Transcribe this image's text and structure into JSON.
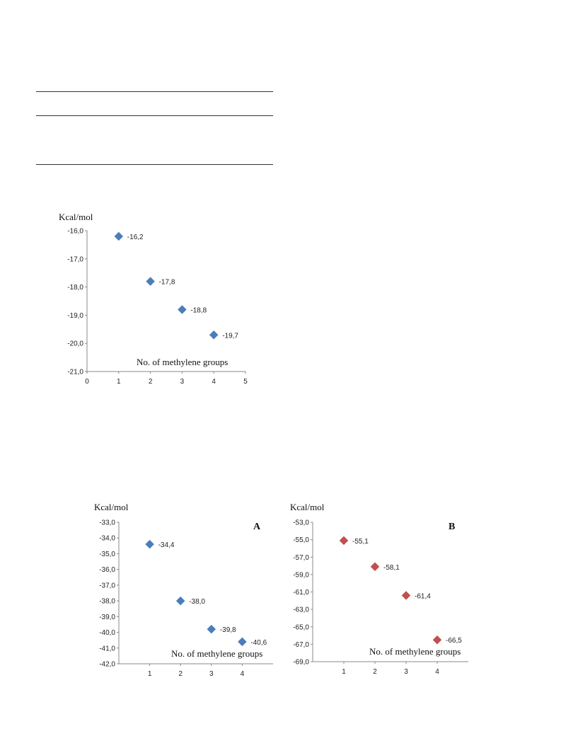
{
  "table_rules": [
    {},
    {},
    {}
  ],
  "chart_data": [
    {
      "id": "chart1",
      "type": "scatter",
      "unit_label": "Kcal/mol",
      "xlabel": "No. of methylene  groups",
      "panel": "",
      "x": [
        1,
        2,
        3,
        4
      ],
      "y": [
        -16.2,
        -17.8,
        -18.8,
        -19.7
      ],
      "data_labels": [
        "-16,2",
        "-17,8",
        "-18,8",
        "-19,7"
      ],
      "xlim": [
        0,
        5
      ],
      "ylim": [
        -21,
        -16
      ],
      "xticks": [
        "0",
        "1",
        "2",
        "3",
        "4",
        "5"
      ],
      "yticks": [
        "-16,0",
        "-17,0",
        "-18,0",
        "-19,0",
        "-20,0",
        "-21,0"
      ],
      "marker_color": "#4a7ebb",
      "grid": false
    },
    {
      "id": "chart2",
      "type": "scatter",
      "unit_label": "Kcal/mol",
      "xlabel": "No. of methylene  groups",
      "panel": "A",
      "x": [
        1,
        2,
        3,
        4
      ],
      "y": [
        -34.4,
        -38.0,
        -39.8,
        -40.6
      ],
      "data_labels": [
        "-34,4",
        "-38,0",
        "-39,8",
        "-40,6"
      ],
      "xlim": [
        0,
        5
      ],
      "ylim": [
        -42,
        -33
      ],
      "xticks": [
        "1",
        "2",
        "3",
        "4"
      ],
      "yticks": [
        "-33,0",
        "-34,0",
        "-35,0",
        "-36,0",
        "-37,0",
        "-38,0",
        "-39,0",
        "-40,0",
        "-41,0",
        "-42,0"
      ],
      "marker_color": "#4a7ebb",
      "grid": false
    },
    {
      "id": "chart3",
      "type": "scatter",
      "unit_label": "Kcal/mol",
      "xlabel": "No. of methylene  groups",
      "panel": "B",
      "x": [
        1,
        2,
        3,
        4
      ],
      "y": [
        -55.1,
        -58.1,
        -61.4,
        -66.5
      ],
      "data_labels": [
        "-55,1",
        "-58,1",
        "-61,4",
        "-66,5"
      ],
      "xlim": [
        0,
        5
      ],
      "ylim": [
        -69,
        -53
      ],
      "xticks": [
        "1",
        "2",
        "3",
        "4"
      ],
      "yticks": [
        "-53,0",
        "-55,0",
        "-57,0",
        "-59,0",
        "-61,0",
        "-63,0",
        "-65,0",
        "-67,0",
        "-69,0"
      ],
      "marker_color": "#c0504d",
      "grid": false
    }
  ]
}
